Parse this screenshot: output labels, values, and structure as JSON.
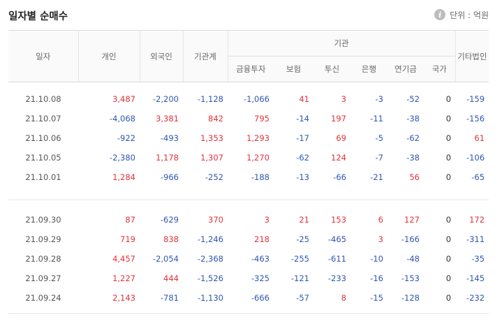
{
  "header": {
    "title": "일자별 순매수",
    "info_icon": "info-icon",
    "unit_label": "단위 : 억원"
  },
  "columns": {
    "date": "일자",
    "individual": "개인",
    "foreign": "외국인",
    "institution_total": "기관계",
    "institution_group": "기관",
    "financial_investment": "금융투자",
    "insurance": "보험",
    "investment_trust": "투신",
    "bank": "은행",
    "pension": "연기금",
    "state": "국가",
    "other_corp": "기타법인"
  },
  "colors": {
    "positive": "#e0323c",
    "negative": "#2f56b0"
  },
  "groups": [
    [
      [
        "21.10.08",
        "3,487",
        "-2,200",
        "-1,128",
        "-1,066",
        "41",
        "3",
        "-3",
        "-52",
        "0",
        "-159"
      ],
      [
        "21.10.07",
        "-4,068",
        "3,381",
        "842",
        "795",
        "-14",
        "197",
        "-11",
        "-38",
        "0",
        "-156"
      ],
      [
        "21.10.06",
        "-922",
        "-493",
        "1,353",
        "1,293",
        "-17",
        "69",
        "-5",
        "-62",
        "0",
        "61"
      ],
      [
        "21.10.05",
        "-2,380",
        "1,178",
        "1,307",
        "1,270",
        "-62",
        "124",
        "-7",
        "-38",
        "0",
        "-106"
      ],
      [
        "21.10.01",
        "1,284",
        "-966",
        "-252",
        "-188",
        "-13",
        "-66",
        "-21",
        "56",
        "0",
        "-65"
      ]
    ],
    [
      [
        "21.09.30",
        "87",
        "-629",
        "370",
        "3",
        "21",
        "153",
        "6",
        "127",
        "0",
        "172"
      ],
      [
        "21.09.29",
        "719",
        "838",
        "-1,246",
        "218",
        "-25",
        "-465",
        "3",
        "-166",
        "0",
        "-311"
      ],
      [
        "21.09.28",
        "4,457",
        "-2,054",
        "-2,368",
        "-463",
        "-255",
        "-611",
        "-10",
        "-48",
        "0",
        "-35"
      ],
      [
        "21.09.27",
        "1,227",
        "444",
        "-1,526",
        "-325",
        "-121",
        "-233",
        "-16",
        "-153",
        "0",
        "-145"
      ],
      [
        "21.09.24",
        "2,143",
        "-781",
        "-1,130",
        "-666",
        "-57",
        "8",
        "-15",
        "-128",
        "0",
        "-232"
      ]
    ]
  ]
}
